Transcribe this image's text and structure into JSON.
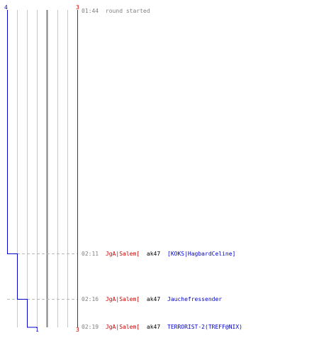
{
  "colors": {
    "blue_team": "#0000cc",
    "red_team": "#cc0000",
    "time": "#808080",
    "weapon": "#000000",
    "grid": "#c8c8c8",
    "grid_major": "#808080",
    "dashed": "#b8b8b8"
  },
  "labels": {
    "blue_count_top": "4",
    "red_count_top": "3",
    "blue_count_bottom": "1",
    "red_count_bottom": "3"
  },
  "events": [
    {
      "time": "01:44",
      "text": "round started"
    },
    {
      "time": "02:11",
      "killer": "JgA|Salem[",
      "weapon": "ak47",
      "victim": "[KOKS|HagbardCeline]"
    },
    {
      "time": "02:16",
      "killer": "JgA|Salem[",
      "weapon": "ak47",
      "victim": "Jauchefressender"
    },
    {
      "time": "02:19",
      "killer": "JgA|Salem[",
      "weapon": "ak47",
      "victim": "TERRORIST-2(TREFF@NIX)"
    }
  ]
}
